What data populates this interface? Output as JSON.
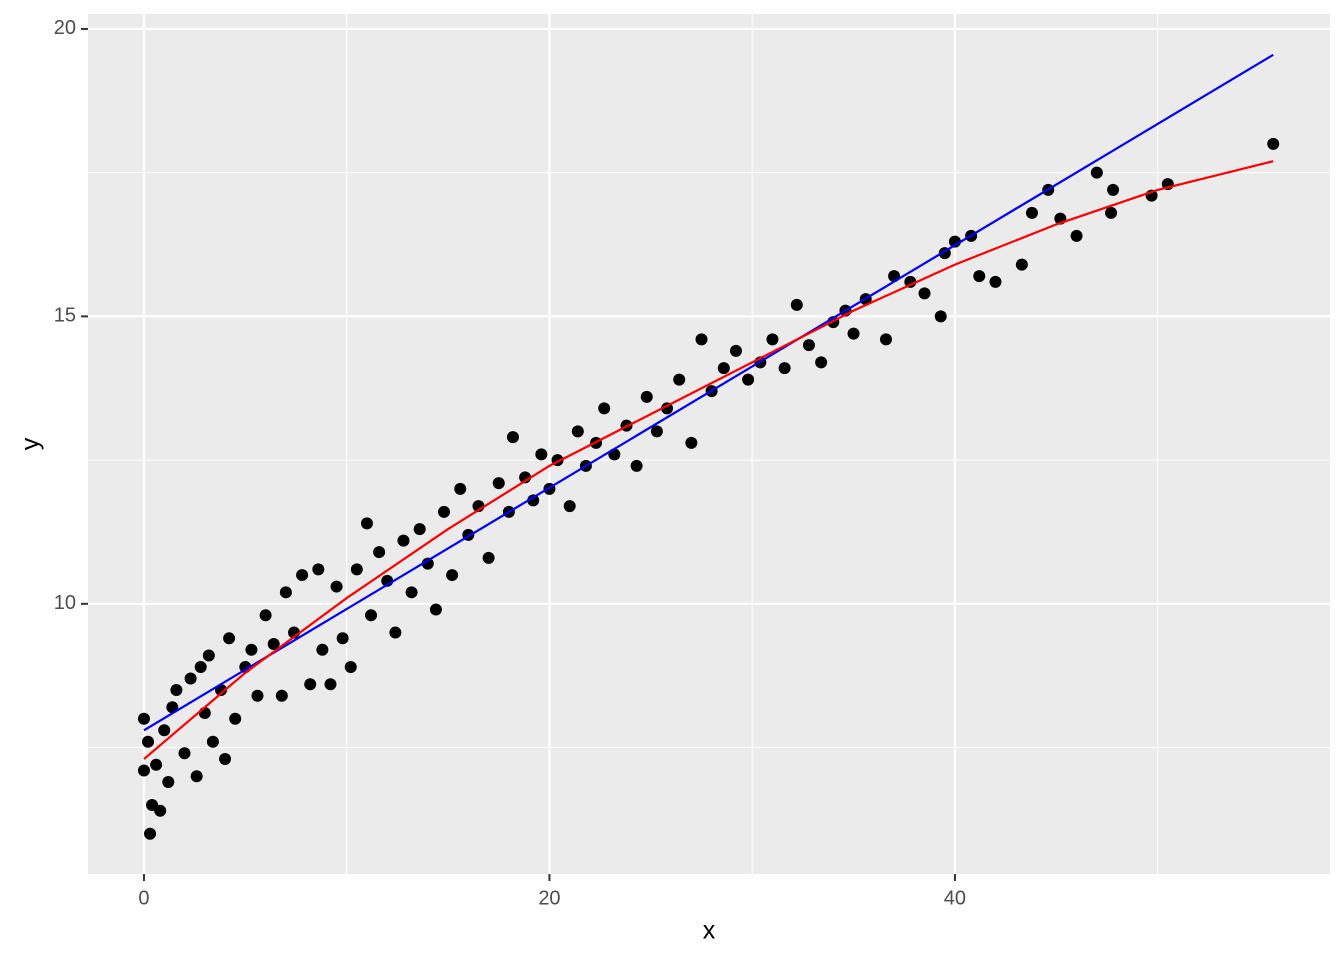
{
  "chart_data": {
    "type": "scatter",
    "xlabel": "x",
    "ylabel": "y",
    "x": [
      0,
      0,
      0.2,
      0.3,
      0.4,
      0.6,
      0.8,
      1,
      1.2,
      1.4,
      1.6,
      2,
      2.3,
      2.6,
      2.8,
      3,
      3.2,
      3.4,
      3.8,
      4,
      4.2,
      4.5,
      5,
      5.3,
      5.6,
      6,
      6.4,
      6.8,
      7,
      7.4,
      7.8,
      8.2,
      8.6,
      8.8,
      9.2,
      9.5,
      9.8,
      10.2,
      10.5,
      11,
      11.2,
      11.6,
      12,
      12.4,
      12.8,
      13.2,
      13.6,
      14,
      14.4,
      14.8,
      15.2,
      15.6,
      16,
      16.5,
      17,
      17.5,
      18,
      18.2,
      18.8,
      19.2,
      19.6,
      20,
      20.4,
      21,
      21.4,
      21.8,
      22.3,
      22.7,
      23.2,
      23.8,
      24.3,
      24.8,
      25.3,
      25.8,
      26.4,
      27,
      27.5,
      28,
      28.6,
      29.2,
      29.8,
      30.4,
      31,
      31.6,
      32.2,
      32.8,
      33.4,
      34,
      34.6,
      35,
      35.6,
      36.6,
      37,
      37.8,
      38.5,
      39.3,
      39.5,
      40,
      40.8,
      41.2,
      42,
      43.3,
      43.8,
      44.6,
      45.2,
      46,
      47,
      47.7,
      47.8,
      49.7,
      50.5,
      55.7
    ],
    "y": [
      8.0,
      7.1,
      7.6,
      6.0,
      6.5,
      7.2,
      6.4,
      7.8,
      6.9,
      8.2,
      8.5,
      7.4,
      8.7,
      7.0,
      8.9,
      8.1,
      9.1,
      7.6,
      8.5,
      7.3,
      9.4,
      8.0,
      8.9,
      9.2,
      8.4,
      9.8,
      9.3,
      8.4,
      10.2,
      9.5,
      10.5,
      8.6,
      10.6,
      9.2,
      8.6,
      10.3,
      9.4,
      8.9,
      10.6,
      11.4,
      9.8,
      10.9,
      10.4,
      9.5,
      11.1,
      10.2,
      11.3,
      10.7,
      9.9,
      11.6,
      10.5,
      12.0,
      11.2,
      11.7,
      10.8,
      12.1,
      11.6,
      12.9,
      12.2,
      11.8,
      12.6,
      12.0,
      12.5,
      11.7,
      13.0,
      12.4,
      12.8,
      13.4,
      12.6,
      13.1,
      12.4,
      13.6,
      13.0,
      13.4,
      13.9,
      12.8,
      14.6,
      13.7,
      14.1,
      14.4,
      13.9,
      14.2,
      14.6,
      14.1,
      15.2,
      14.5,
      14.2,
      14.9,
      15.1,
      14.7,
      15.3,
      14.6,
      15.7,
      15.6,
      15.4,
      15.0,
      16.1,
      16.3,
      16.4,
      15.7,
      15.6,
      15.9,
      16.8,
      17.2,
      16.7,
      16.4,
      17.5,
      16.8,
      17.2,
      17.1,
      17.3,
      18.0
    ],
    "color": "#000000",
    "lines": [
      {
        "color": "#0000ff",
        "x": [
          0,
          55.7
        ],
        "y": [
          7.8,
          19.55
        ]
      },
      {
        "color": "#ff0000",
        "x": [
          0,
          5,
          10,
          15,
          20,
          25,
          30,
          35,
          40,
          45,
          50,
          55.7
        ],
        "y": [
          7.3,
          8.8,
          10.1,
          11.3,
          12.4,
          13.3,
          14.2,
          15.1,
          15.9,
          16.6,
          17.2,
          17.7
        ]
      }
    ],
    "xlim": [
      -2.76,
      58.5
    ],
    "ylim": [
      5.3,
      20.26
    ],
    "xticks": [
      0,
      20,
      40
    ],
    "yticks": [
      10,
      15,
      20
    ],
    "x_minor_grid": [
      10,
      30,
      50
    ],
    "y_minor_grid": [
      7.5,
      12.5,
      17.5
    ],
    "grid": true
  }
}
